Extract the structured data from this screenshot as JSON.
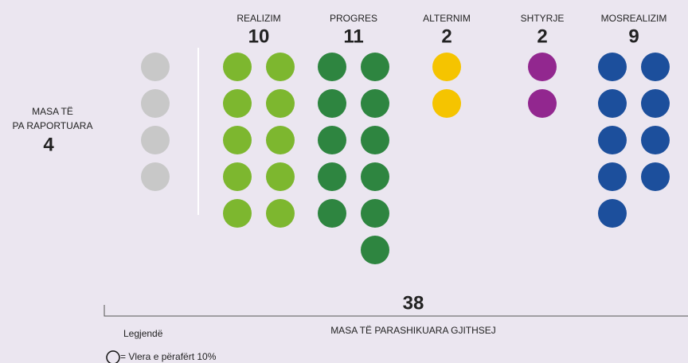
{
  "chart_data": {
    "type": "dot",
    "categories": [
      "REALIZIM",
      "PROGRES",
      "ALTERNIM",
      "SHTYRJE",
      "MOSREALIZIM"
    ],
    "values": [
      10,
      11,
      2,
      2,
      9
    ],
    "colors": [
      "#7db72f",
      "#2e8540",
      "#f5c400",
      "#92278f",
      "#1c4f9c"
    ],
    "unreported": {
      "label": [
        "MASA TË",
        "PA RAPORTUARA"
      ],
      "value": 4,
      "color": "#c8c8c8"
    },
    "total": {
      "value": 38,
      "label": "MASA TË PARASHIKUARA GJITHSEJ",
      "color": "#3bb4e5"
    },
    "legend": {
      "title": "Legjendë",
      "text": "= Vlera e përafërt 10%"
    }
  }
}
